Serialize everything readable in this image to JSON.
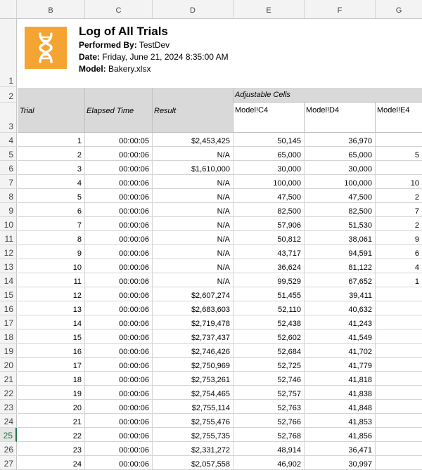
{
  "columns": [
    "B",
    "C",
    "D",
    "E",
    "F",
    "G"
  ],
  "report": {
    "title": "Log of All Trials",
    "performed_by_label": "Performed By:",
    "performed_by": "TestDev",
    "date_label": "Date:",
    "date": "Friday, June 21, 2024 8:35:00 AM",
    "model_label": "Model:",
    "model": "Bakery.xlsx",
    "logo_color": "#f6a431"
  },
  "header": {
    "adjustable_cells": "Adjustable Cells",
    "trial": "Trial",
    "elapsed_time": "Elapsed Time",
    "result": "Result",
    "e": "Model!C4",
    "f": "Model!D4",
    "g": "Model!E4"
  },
  "header_rows": [
    "1",
    "2",
    "3"
  ],
  "active_row": "25",
  "rows": [
    {
      "r": "4",
      "trial": "1",
      "time": "00:00:05",
      "result": "$2,453,425",
      "e": "50,145",
      "f": "36,970",
      "g": ""
    },
    {
      "r": "5",
      "trial": "2",
      "time": "00:00:06",
      "result": "N/A",
      "e": "65,000",
      "f": "65,000",
      "g": "5"
    },
    {
      "r": "6",
      "trial": "3",
      "time": "00:00:06",
      "result": "$1,610,000",
      "e": "30,000",
      "f": "30,000",
      "g": ""
    },
    {
      "r": "7",
      "trial": "4",
      "time": "00:00:06",
      "result": "N/A",
      "e": "100,000",
      "f": "100,000",
      "g": "10"
    },
    {
      "r": "8",
      "trial": "5",
      "time": "00:00:06",
      "result": "N/A",
      "e": "47,500",
      "f": "47,500",
      "g": "2"
    },
    {
      "r": "9",
      "trial": "6",
      "time": "00:00:06",
      "result": "N/A",
      "e": "82,500",
      "f": "82,500",
      "g": "7"
    },
    {
      "r": "10",
      "trial": "7",
      "time": "00:00:06",
      "result": "N/A",
      "e": "57,906",
      "f": "51,530",
      "g": "2"
    },
    {
      "r": "11",
      "trial": "8",
      "time": "00:00:06",
      "result": "N/A",
      "e": "50,812",
      "f": "38,061",
      "g": "9"
    },
    {
      "r": "12",
      "trial": "9",
      "time": "00:00:06",
      "result": "N/A",
      "e": "43,717",
      "f": "94,591",
      "g": "6"
    },
    {
      "r": "13",
      "trial": "10",
      "time": "00:00:06",
      "result": "N/A",
      "e": "36,624",
      "f": "81,122",
      "g": "4"
    },
    {
      "r": "14",
      "trial": "11",
      "time": "00:00:06",
      "result": "N/A",
      "e": "99,529",
      "f": "67,652",
      "g": "1"
    },
    {
      "r": "15",
      "trial": "12",
      "time": "00:00:06",
      "result": "$2,607,274",
      "e": "51,455",
      "f": "39,411",
      "g": ""
    },
    {
      "r": "16",
      "trial": "13",
      "time": "00:00:06",
      "result": "$2,683,603",
      "e": "52,110",
      "f": "40,632",
      "g": ""
    },
    {
      "r": "17",
      "trial": "14",
      "time": "00:00:06",
      "result": "$2,719,478",
      "e": "52,438",
      "f": "41,243",
      "g": ""
    },
    {
      "r": "18",
      "trial": "15",
      "time": "00:00:06",
      "result": "$2,737,437",
      "e": "52,602",
      "f": "41,549",
      "g": ""
    },
    {
      "r": "19",
      "trial": "16",
      "time": "00:00:06",
      "result": "$2,746,426",
      "e": "52,684",
      "f": "41,702",
      "g": ""
    },
    {
      "r": "20",
      "trial": "17",
      "time": "00:00:06",
      "result": "$2,750,969",
      "e": "52,725",
      "f": "41,779",
      "g": ""
    },
    {
      "r": "21",
      "trial": "18",
      "time": "00:00:06",
      "result": "$2,753,261",
      "e": "52,746",
      "f": "41,818",
      "g": ""
    },
    {
      "r": "22",
      "trial": "19",
      "time": "00:00:06",
      "result": "$2,754,465",
      "e": "52,757",
      "f": "41,838",
      "g": ""
    },
    {
      "r": "23",
      "trial": "20",
      "time": "00:00:06",
      "result": "$2,755,114",
      "e": "52,763",
      "f": "41,848",
      "g": ""
    },
    {
      "r": "24",
      "trial": "21",
      "time": "00:00:06",
      "result": "$2,755,476",
      "e": "52,766",
      "f": "41,853",
      "g": ""
    },
    {
      "r": "25",
      "trial": "22",
      "time": "00:00:06",
      "result": "$2,755,735",
      "e": "52,768",
      "f": "41,856",
      "g": ""
    },
    {
      "r": "26",
      "trial": "23",
      "time": "00:00:06",
      "result": "$2,331,272",
      "e": "48,914",
      "f": "36,471",
      "g": ""
    },
    {
      "r": "27",
      "trial": "24",
      "time": "00:00:06",
      "result": "$2,057,558",
      "e": "46,902",
      "f": "30,997",
      "g": ""
    }
  ]
}
